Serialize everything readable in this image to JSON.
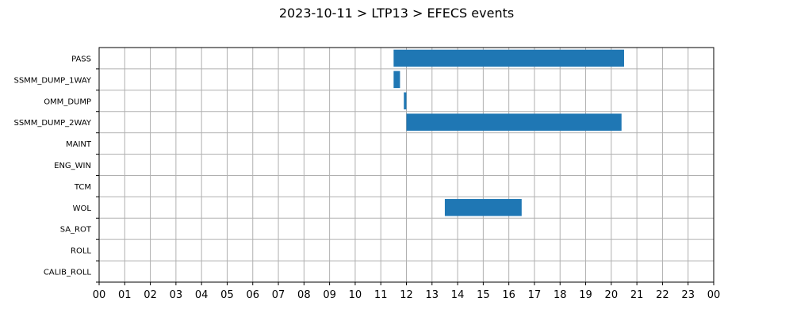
{
  "chart_data": {
    "type": "bar",
    "orientation": "horizontal",
    "title": "2023-10-11 > LTP13 > EFECS events",
    "xlabel": "",
    "ylabel": "",
    "xlim": [
      0,
      24
    ],
    "x_tick_labels": [
      "00",
      "01",
      "02",
      "03",
      "04",
      "05",
      "06",
      "07",
      "08",
      "09",
      "10",
      "11",
      "12",
      "13",
      "14",
      "15",
      "16",
      "17",
      "18",
      "19",
      "20",
      "21",
      "22",
      "23",
      "00"
    ],
    "categories": [
      "PASS",
      "SSMM_DUMP_1WAY",
      "OMM_DUMP",
      "SSMM_DUMP_2WAY",
      "MAINT",
      "ENG_WIN",
      "TCM",
      "WOL",
      "SA_ROT",
      "ROLL",
      "CALIB_ROLL"
    ],
    "bars": [
      {
        "category": "PASS",
        "start": 11.5,
        "end": 20.5
      },
      {
        "category": "SSMM_DUMP_1WAY",
        "start": 11.5,
        "end": 11.75
      },
      {
        "category": "OMM_DUMP",
        "start": 11.9,
        "end": 12.0
      },
      {
        "category": "SSMM_DUMP_2WAY",
        "start": 12.0,
        "end": 20.4
      },
      {
        "category": "WOL",
        "start": 13.5,
        "end": 16.5
      }
    ],
    "grid": true,
    "legend": "none",
    "bar_color": "#1f77b4"
  }
}
